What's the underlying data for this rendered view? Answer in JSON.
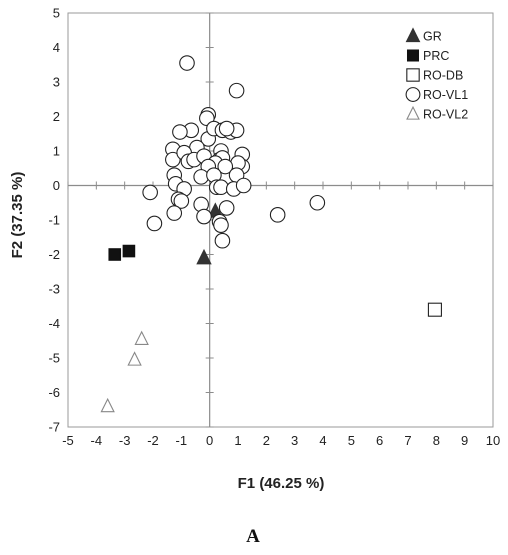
{
  "chart_data": {
    "type": "scatter",
    "xlabel": "F1 (46.25 %)",
    "ylabel": "F2 (37.35 %)",
    "xlim": [
      -5,
      10
    ],
    "ylim": [
      -7,
      5
    ],
    "x_ticks": [
      -5,
      -4,
      -3,
      -2,
      -1,
      0,
      1,
      2,
      3,
      4,
      5,
      6,
      7,
      8,
      9,
      10
    ],
    "y_ticks": [
      -7,
      -6,
      -5,
      -4,
      -3,
      -2,
      -1,
      0,
      1,
      2,
      3,
      4,
      5
    ],
    "grid": false,
    "legend_position": "top-right",
    "series": [
      {
        "name": "GR",
        "marker": "filled-triangle",
        "color": "#333333",
        "points": [
          [
            0.2,
            -0.75
          ],
          [
            -0.2,
            -2.1
          ]
        ]
      },
      {
        "name": "PRC",
        "marker": "filled-square",
        "color": "#111111",
        "points": [
          [
            -3.35,
            -2.0
          ],
          [
            -2.85,
            -1.9
          ]
        ]
      },
      {
        "name": "RO-DB",
        "marker": "open-square",
        "color": "#222222",
        "points": [
          [
            7.95,
            -3.6
          ]
        ]
      },
      {
        "name": "RO-VL1",
        "marker": "open-circle",
        "color": "#222222",
        "points": [
          [
            -0.8,
            3.55
          ],
          [
            0.95,
            2.75
          ],
          [
            -0.05,
            2.05
          ],
          [
            -0.1,
            1.95
          ],
          [
            -0.05,
            1.35
          ],
          [
            0.15,
            1.65
          ],
          [
            0.45,
            1.6
          ],
          [
            0.75,
            1.55
          ],
          [
            0.95,
            1.6
          ],
          [
            0.6,
            1.65
          ],
          [
            -0.65,
            1.6
          ],
          [
            -1.05,
            1.55
          ],
          [
            -0.45,
            1.1
          ],
          [
            0.4,
            1.0
          ],
          [
            -1.3,
            1.05
          ],
          [
            -1.3,
            0.75
          ],
          [
            -0.9,
            0.95
          ],
          [
            -0.75,
            0.7
          ],
          [
            -0.55,
            0.75
          ],
          [
            -0.2,
            0.85
          ],
          [
            0.35,
            0.75
          ],
          [
            0.45,
            0.8
          ],
          [
            0.2,
            0.65
          ],
          [
            1.15,
            0.9
          ],
          [
            1.15,
            0.55
          ],
          [
            1.0,
            0.65
          ],
          [
            0.55,
            0.55
          ],
          [
            -0.05,
            0.55
          ],
          [
            -1.25,
            0.3
          ],
          [
            -0.3,
            0.25
          ],
          [
            0.15,
            0.3
          ],
          [
            0.95,
            0.3
          ],
          [
            -1.2,
            0.05
          ],
          [
            0.25,
            -0.05
          ],
          [
            0.4,
            -0.05
          ],
          [
            0.85,
            -0.1
          ],
          [
            1.2,
            0.0
          ],
          [
            -0.9,
            -0.1
          ],
          [
            -2.1,
            -0.2
          ],
          [
            -1.1,
            -0.4
          ],
          [
            -1.0,
            -0.45
          ],
          [
            -0.3,
            -0.55
          ],
          [
            0.6,
            -0.65
          ],
          [
            -1.25,
            -0.8
          ],
          [
            -0.2,
            -0.9
          ],
          [
            0.35,
            -1.05
          ],
          [
            0.4,
            -1.15
          ],
          [
            0.45,
            -1.6
          ],
          [
            -1.95,
            -1.1
          ],
          [
            2.4,
            -0.85
          ],
          [
            3.8,
            -0.5
          ]
        ]
      },
      {
        "name": "RO-VL2",
        "marker": "open-triangle",
        "color": "#888888",
        "points": [
          [
            -2.4,
            -4.45
          ],
          [
            -2.65,
            -5.05
          ],
          [
            -3.6,
            -6.4
          ]
        ]
      }
    ],
    "caption": "A"
  }
}
